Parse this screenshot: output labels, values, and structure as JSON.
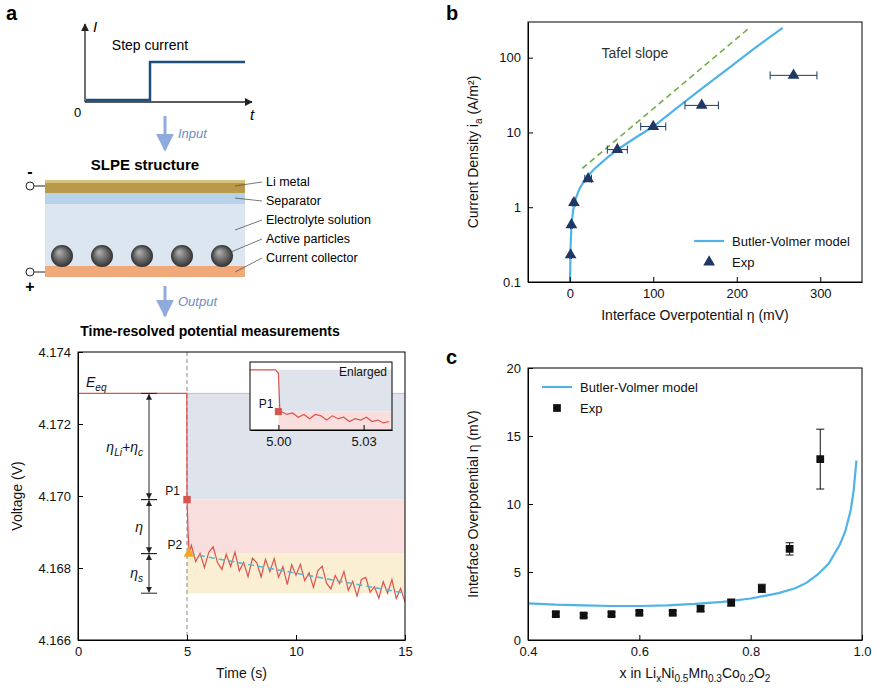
{
  "panel_labels": [
    "a",
    "b",
    "c"
  ],
  "diagram": {
    "step_current": {
      "title": "Step current",
      "y_axis": "I",
      "x_axis": "t",
      "origin": "0"
    },
    "input": "Input",
    "structure": {
      "title": "SLPE structure",
      "negative": "-",
      "positive": "+",
      "layers": [
        "Li metal",
        "Separator",
        "Electrolyte solution",
        "Active particles",
        "Current collector"
      ]
    },
    "output": "Output",
    "measurement_title": "Time-resolved potential measurements"
  },
  "chart_data": [
    {
      "type": "line",
      "xlabel": "Time (s)",
      "ylabel": "Voltage (V)",
      "xlim": [
        0,
        15
      ],
      "xticks": [
        0,
        5,
        10,
        15
      ],
      "ylim": [
        4.166,
        4.174
      ],
      "yticks": [
        4.166,
        4.168,
        {
          "value": 4.17,
          "label": "4.170"
        },
        4.172,
        4.174
      ],
      "series": [
        {
          "color": "#d9534f",
          "x": [
            0,
            4.99,
            5,
            5.05,
            5.1,
            5.2,
            5.4,
            5.6,
            5.8,
            6,
            6.2,
            6.4,
            6.6,
            6.8,
            7,
            7.2,
            7.4,
            7.6,
            7.8,
            8,
            8.2,
            8.4,
            8.6,
            8.8,
            9,
            9.2,
            9.4,
            9.6,
            9.8,
            10,
            10.2,
            10.4,
            10.6,
            10.8,
            11,
            11.2,
            11.4,
            11.6,
            11.8,
            12,
            12.2,
            12.4,
            12.6,
            12.8,
            13,
            13.2,
            13.4,
            13.6,
            13.8,
            14,
            14.2,
            14.4,
            14.6,
            14.8,
            15
          ],
          "values": [
            4.17285,
            4.17285,
            4.1699,
            4.169,
            4.1684,
            4.16863,
            4.16818,
            4.16841,
            4.16801,
            4.16844,
            4.16859,
            4.16815,
            4.16796,
            4.16838,
            4.16804,
            4.16844,
            4.16792,
            4.16816,
            4.16776,
            4.16827,
            4.16815,
            4.16775,
            4.16824,
            4.1679,
            4.16826,
            4.16774,
            4.16804,
            4.16754,
            4.16809,
            4.1678,
            4.1681,
            4.16765,
            4.16787,
            4.16746,
            4.16792,
            4.16805,
            4.16758,
            4.16742,
            4.16779,
            4.16757,
            4.1679,
            4.16738,
            4.16763,
            4.16722,
            4.16768,
            4.16774,
            4.16733,
            4.16748,
            4.16716,
            4.16762,
            4.1673,
            4.16768,
            4.16715,
            4.16743,
            4.16706
          ]
        },
        {
          "color": "#5bb8d0",
          "line_style": "dashed",
          "x": [
            5.1,
            15
          ],
          "values": [
            4.1684,
            4.1673
          ]
        }
      ],
      "equilibrium": {
        "label": [
          "E",
          "eq"
        ],
        "value": 4.17285
      },
      "overpotentials": [
        {
          "label": [
            "η",
            "Li",
            "+η",
            "c"
          ],
          "from": 4.17285,
          "to": 4.1699
        },
        {
          "label": "η",
          "from": 4.1699,
          "to": 4.1684
        },
        {
          "label": [
            "η",
            "s"
          ],
          "from": 4.1684,
          "to": 4.1673
        }
      ],
      "points": [
        {
          "label": "P1",
          "x": 5,
          "y": 4.1699,
          "marker": "square",
          "color": "#d9534f"
        },
        {
          "label": "P2",
          "x": 5.1,
          "y": 4.1684,
          "marker": "triangle",
          "color": "#f4a62a"
        }
      ]
    },
    {
      "type": "line",
      "title": "Enlarged",
      "tick_labels": "x",
      "xlim": [
        4.99,
        5.04
      ],
      "xticks": [
        {
          "value": 5,
          "label": "5.00"
        },
        5.03
      ],
      "ylim": [
        4.1686,
        4.1734
      ],
      "series": [
        {
          "color": "#d9534f",
          "x": [
            4.99,
            4.999,
            5,
            5.0005,
            5.001,
            5.003,
            5.005,
            5.007,
            5.009,
            5.011,
            5.013,
            5.015,
            5.017,
            5.019,
            5.021,
            5.023,
            5.025,
            5.027,
            5.029,
            5.031,
            5.033,
            5.035,
            5.037,
            5.039
          ],
          "values": [
            4.17285,
            4.17285,
            4.1726,
            4.17,
            4.1699,
            4.1697,
            4.1698,
            4.1695,
            4.1697,
            4.1694,
            4.1697,
            4.1696,
            4.1693,
            4.1696,
            4.1694,
            4.1695,
            4.1692,
            4.1694,
            4.1693,
            4.1695,
            4.1692,
            4.1693,
            4.1691,
            4.1692
          ]
        }
      ]
    },
    {
      "type": "scatter",
      "xlabel": "Interface Overpotential η (mV)",
      "ylabel": [
        "Current Density i",
        "a",
        " (A/m²)"
      ],
      "log": "y",
      "xlim": [
        -50,
        350
      ],
      "xticks": [
        0,
        100,
        200,
        300
      ],
      "ylim": [
        0.1,
        300
      ],
      "yticks": [
        0.1,
        1,
        10,
        100
      ],
      "legend": "lower right",
      "annotations": [
        "Tafel slope"
      ],
      "series": [
        {
          "name": "Butler-Volmer model",
          "type": "line",
          "color": "#4fb3e8",
          "x": [
            0.3,
            1,
            2,
            4,
            7,
            12,
            20,
            30,
            45,
            60,
            80,
            100,
            130,
            160,
            190,
            220,
            240,
            255
          ],
          "values": [
            0.1,
            0.3,
            0.55,
            0.9,
            1.3,
            1.8,
            2.5,
            3.3,
            4.6,
            6.2,
            8.7,
            12,
            22,
            40,
            72,
            130,
            190,
            250
          ]
        },
        {
          "type": "line",
          "line_style": "dashed",
          "color": "#70ad47",
          "x": [
            15,
            215
          ],
          "values": [
            3.3,
            250
          ]
        },
        {
          "name": "Exp",
          "type": "scatter",
          "marker": "triangle",
          "color": "#1f3864",
          "x": [
            1,
            2,
            5,
            22,
            57,
            100,
            158,
            268
          ],
          "values": [
            0.23,
            0.58,
            1.15,
            2.4,
            5.9,
            12,
            23,
            58
          ],
          "x_errors": [
            1,
            1,
            2,
            4,
            12,
            15,
            20,
            28
          ]
        }
      ]
    },
    {
      "type": "scatter",
      "xlabel": [
        "x in Li",
        "x",
        "Ni",
        "0.5",
        "Mn",
        "0.3",
        "Co",
        "0.2",
        "O",
        "2"
      ],
      "ylabel": "Interface Overpotential η (mV)",
      "xlim": [
        0.4,
        1.0
      ],
      "xticks": [
        0.4,
        0.6,
        0.8,
        {
          "value": 1.0,
          "label": "1.0"
        }
      ],
      "ylim": [
        0,
        20
      ],
      "yticks": [
        0,
        5,
        10,
        15,
        20
      ],
      "legend": "upper left",
      "series": [
        {
          "name": "Butler-Volmer model",
          "type": "line",
          "color": "#4fb3e8",
          "x": [
            0.4,
            0.45,
            0.5,
            0.55,
            0.6,
            0.65,
            0.7,
            0.75,
            0.8,
            0.85,
            0.88,
            0.9,
            0.92,
            0.94,
            0.96,
            0.97,
            0.98,
            0.985,
            0.99
          ],
          "values": [
            2.7,
            2.6,
            2.55,
            2.5,
            2.5,
            2.55,
            2.65,
            2.8,
            3.05,
            3.45,
            3.8,
            4.2,
            4.8,
            5.6,
            7.0,
            8.0,
            9.6,
            11,
            13.2
          ]
        },
        {
          "name": "Exp",
          "type": "scatter",
          "marker": "square",
          "color": "#111111",
          "x": [
            0.45,
            0.5,
            0.55,
            0.6,
            0.66,
            0.71,
            0.765,
            0.82,
            0.87,
            0.925
          ],
          "values": [
            1.9,
            1.8,
            1.9,
            2.0,
            2.0,
            2.3,
            2.75,
            3.8,
            6.7,
            13.3
          ],
          "errors": [
            0.15,
            0.15,
            0.15,
            0.15,
            0.15,
            0.2,
            0.25,
            0.3,
            0.45,
            2.2
          ]
        }
      ]
    }
  ]
}
